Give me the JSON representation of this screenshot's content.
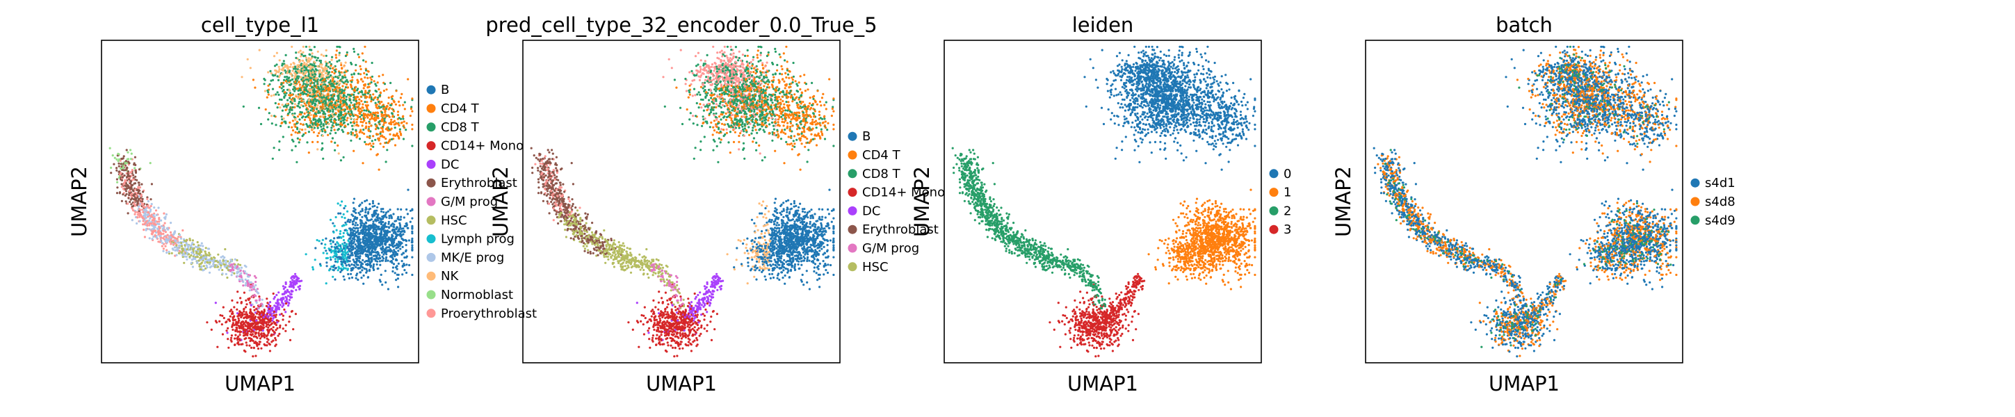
{
  "chart_data": [
    {
      "type": "scatter",
      "title": "cell_type_l1",
      "xlabel": "UMAP1",
      "ylabel": "UMAP2",
      "grid": false,
      "legend": "right",
      "series": [
        {
          "name": "B",
          "color": "#1f77b4"
        },
        {
          "name": "CD4 T",
          "color": "#ff7f0e"
        },
        {
          "name": "CD8 T",
          "color": "#279e68"
        },
        {
          "name": "CD14+ Mono",
          "color": "#d62728"
        },
        {
          "name": "DC",
          "color": "#aa40fc"
        },
        {
          "name": "Erythroblast",
          "color": "#8c564b"
        },
        {
          "name": "G/M prog",
          "color": "#e377c2"
        },
        {
          "name": "HSC",
          "color": "#b5bd61"
        },
        {
          "name": "Lymph prog",
          "color": "#17becf"
        },
        {
          "name": "MK/E prog",
          "color": "#aec7e8"
        },
        {
          "name": "NK",
          "color": "#ffbb78"
        },
        {
          "name": "Normoblast",
          "color": "#98df8a"
        },
        {
          "name": "Proerythroblast",
          "color": "#ff9896"
        }
      ]
    },
    {
      "type": "scatter",
      "title": "pred_cell_type_32_encoder_0.0_True_5",
      "xlabel": "UMAP1",
      "ylabel": "UMAP2",
      "grid": false,
      "legend": "right",
      "series": [
        {
          "name": "B",
          "color": "#1f77b4"
        },
        {
          "name": "CD4 T",
          "color": "#ff7f0e"
        },
        {
          "name": "CD8 T",
          "color": "#279e68"
        },
        {
          "name": "CD14+ Mono",
          "color": "#d62728"
        },
        {
          "name": "DC",
          "color": "#aa40fc"
        },
        {
          "name": "Erythroblast",
          "color": "#8c564b"
        },
        {
          "name": "G/M prog",
          "color": "#e377c2"
        },
        {
          "name": "HSC",
          "color": "#b5bd61"
        }
      ]
    },
    {
      "type": "scatter",
      "title": "leiden",
      "xlabel": "UMAP1",
      "ylabel": "UMAP2",
      "grid": false,
      "legend": "right",
      "series": [
        {
          "name": "0",
          "color": "#1f77b4"
        },
        {
          "name": "1",
          "color": "#ff7f0e"
        },
        {
          "name": "2",
          "color": "#279e68"
        },
        {
          "name": "3",
          "color": "#d62728"
        }
      ]
    },
    {
      "type": "scatter",
      "title": "batch",
      "xlabel": "UMAP1",
      "ylabel": "UMAP2",
      "grid": false,
      "legend": "right",
      "series": [
        {
          "name": "s4d1",
          "color": "#1f77b4"
        },
        {
          "name": "s4d8",
          "color": "#ff7f0e"
        },
        {
          "name": "s4d9",
          "color": "#279e68"
        }
      ]
    }
  ]
}
